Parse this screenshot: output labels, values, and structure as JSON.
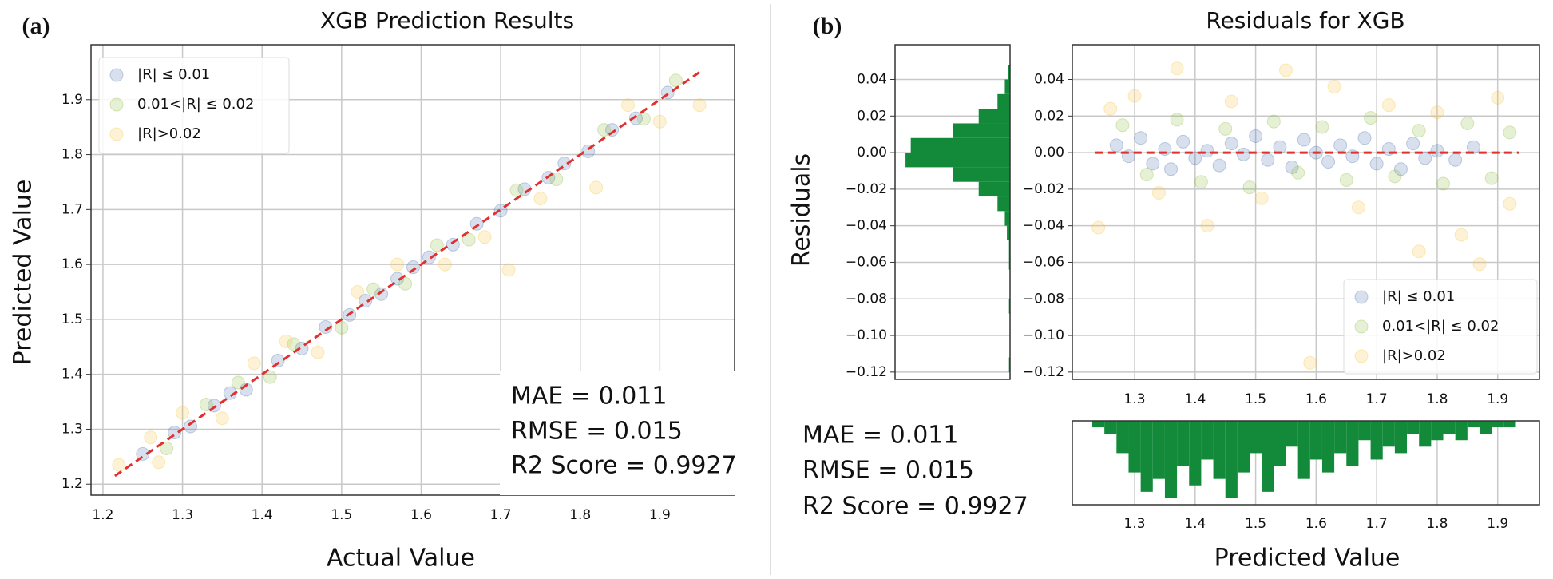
{
  "chart_data": [
    {
      "type": "scatter",
      "panel_label": "(a)",
      "title": "XGB Prediction Results",
      "x_label": "Actual Value",
      "y_label": "Predicted Value",
      "xlim": [
        1.185,
        1.994
      ],
      "ylim": [
        1.18,
        2.0
      ],
      "xticks": [
        1.2,
        1.3,
        1.4,
        1.5,
        1.6,
        1.7,
        1.8,
        1.9
      ],
      "yticks": [
        1.2,
        1.3,
        1.4,
        1.5,
        1.6,
        1.7,
        1.8,
        1.9
      ],
      "grid": true,
      "legend": "upper left",
      "alpha": 0.22,
      "series": [
        {
          "name": "|R| ≤ 0.01",
          "color": "#4c72b0",
          "x": [
            1.25,
            1.29,
            1.31,
            1.34,
            1.36,
            1.38,
            1.42,
            1.45,
            1.48,
            1.51,
            1.53,
            1.55,
            1.57,
            1.59,
            1.61,
            1.64,
            1.67,
            1.7,
            1.73,
            1.76,
            1.78,
            1.81,
            1.84,
            1.87,
            1.91
          ],
          "values": [
            1.255,
            1.294,
            1.305,
            1.343,
            1.366,
            1.372,
            1.425,
            1.447,
            1.486,
            1.508,
            1.534,
            1.546,
            1.574,
            1.595,
            1.613,
            1.636,
            1.674,
            1.698,
            1.737,
            1.758,
            1.784,
            1.806,
            1.845,
            1.866,
            1.913
          ]
        },
        {
          "name": "0.01<|R| ≤ 0.02",
          "color": "#8fbc3f",
          "x": [
            1.28,
            1.33,
            1.37,
            1.41,
            1.44,
            1.5,
            1.54,
            1.58,
            1.62,
            1.66,
            1.72,
            1.77,
            1.83,
            1.88,
            1.92
          ],
          "values": [
            1.265,
            1.345,
            1.385,
            1.395,
            1.455,
            1.485,
            1.555,
            1.565,
            1.635,
            1.645,
            1.735,
            1.755,
            1.845,
            1.865,
            1.935
          ]
        },
        {
          "name": "|R|>0.02",
          "color": "#f5c542",
          "x": [
            1.22,
            1.26,
            1.27,
            1.3,
            1.35,
            1.39,
            1.43,
            1.47,
            1.52,
            1.57,
            1.63,
            1.68,
            1.71,
            1.75,
            1.82,
            1.86,
            1.9,
            1.95
          ],
          "values": [
            1.235,
            1.285,
            1.24,
            1.33,
            1.32,
            1.42,
            1.46,
            1.44,
            1.55,
            1.6,
            1.6,
            1.65,
            1.59,
            1.72,
            1.74,
            1.89,
            1.86,
            1.89
          ]
        }
      ],
      "reference_line": {
        "color": "#e0312f",
        "x": [
          1.215,
          1.95
        ],
        "y": [
          1.215,
          1.95
        ]
      },
      "annotations": [
        "MAE = 0.011",
        "RMSE = 0.015",
        "R2 Score = 0.9927"
      ]
    },
    {
      "type": "scatter",
      "panel_label": "(b)",
      "title": "Residuals for XGB",
      "x_label": "Predicted Value",
      "y_label": "Residuals",
      "xlim": [
        1.197,
        1.969
      ],
      "ylim": [
        -0.124,
        0.059
      ],
      "xticks": [
        1.3,
        1.4,
        1.5,
        1.6,
        1.7,
        1.8,
        1.9
      ],
      "yticks": [
        {
          "value": -0.12,
          "label": "−0.12"
        },
        {
          "value": -0.1,
          "label": "−0.10"
        },
        {
          "value": -0.08,
          "label": "−0.08"
        },
        {
          "value": -0.06,
          "label": "−0.06"
        },
        {
          "value": -0.04,
          "label": "−0.04"
        },
        {
          "value": -0.02,
          "label": "−0.02"
        },
        {
          "value": 0,
          "label": "0.00"
        },
        0.02,
        0.04
      ],
      "grid": true,
      "legend": "lower right",
      "alpha": 0.22,
      "series": [
        {
          "name": "|R| ≤ 0.01",
          "color": "#4c72b0",
          "x": [
            1.27,
            1.29,
            1.31,
            1.33,
            1.35,
            1.36,
            1.38,
            1.4,
            1.42,
            1.44,
            1.46,
            1.48,
            1.5,
            1.52,
            1.54,
            1.56,
            1.58,
            1.6,
            1.62,
            1.64,
            1.66,
            1.68,
            1.7,
            1.72,
            1.74,
            1.76,
            1.78,
            1.8,
            1.83,
            1.86
          ],
          "values": [
            0.004,
            -0.002,
            0.008,
            -0.006,
            0.002,
            -0.009,
            0.006,
            -0.003,
            0.001,
            -0.007,
            0.005,
            -0.001,
            0.009,
            -0.004,
            0.003,
            -0.008,
            0.007,
            0,
            -0.005,
            0.004,
            -0.002,
            0.008,
            -0.006,
            0.002,
            -0.009,
            0.005,
            -0.003,
            0.001,
            -0.004,
            0.003
          ]
        },
        {
          "name": "0.01<|R| ≤ 0.02",
          "color": "#8fbc3f",
          "x": [
            1.28,
            1.32,
            1.37,
            1.41,
            1.45,
            1.49,
            1.53,
            1.57,
            1.61,
            1.65,
            1.69,
            1.73,
            1.77,
            1.81,
            1.85,
            1.89,
            1.92
          ],
          "values": [
            0.015,
            -0.012,
            0.018,
            -0.016,
            0.013,
            -0.019,
            0.017,
            -0.011,
            0.014,
            -0.015,
            0.019,
            -0.013,
            0.012,
            -0.017,
            0.016,
            -0.014,
            0.011
          ]
        },
        {
          "name": "|R|>0.02",
          "color": "#f5c542",
          "x": [
            1.24,
            1.26,
            1.3,
            1.34,
            1.37,
            1.42,
            1.46,
            1.51,
            1.55,
            1.59,
            1.63,
            1.67,
            1.72,
            1.77,
            1.8,
            1.84,
            1.87,
            1.9,
            1.92
          ],
          "values": [
            -0.041,
            0.024,
            0.031,
            -0.022,
            0.046,
            -0.04,
            0.028,
            -0.025,
            0.045,
            -0.115,
            0.036,
            -0.03,
            0.026,
            -0.054,
            0.022,
            -0.045,
            -0.061,
            0.03,
            -0.028
          ]
        }
      ],
      "reference_line": {
        "color": "#e0312f",
        "x": [
          1.235,
          1.935
        ],
        "y": [
          0,
          0
        ]
      },
      "annotations": [
        "MAE = 0.011",
        "RMSE = 0.015",
        "R2 Score = 0.9927"
      ]
    },
    {
      "type": "histogram",
      "orientation": "horizontal",
      "inverted": true,
      "color": "#138a3a",
      "grid": true,
      "xlim": [
        0,
        110
      ],
      "ylim": [
        -0.124,
        0.059
      ],
      "yticks": [
        {
          "value": -0.12,
          "label": "−0.12"
        },
        {
          "value": -0.1,
          "label": "−0.10"
        },
        {
          "value": -0.08,
          "label": "−0.08"
        },
        {
          "value": -0.06,
          "label": "−0.06"
        },
        {
          "value": -0.04,
          "label": "−0.04"
        },
        {
          "value": -0.02,
          "label": "−0.02"
        },
        {
          "value": 0,
          "label": "0.00"
        },
        0.02,
        0.04
      ],
      "bins": [
        -0.12,
        -0.112,
        -0.104,
        -0.096,
        -0.088,
        -0.08,
        -0.072,
        -0.064,
        -0.056,
        -0.048,
        -0.04,
        -0.032,
        -0.024,
        -0.016,
        -0.008,
        0,
        0.008,
        0.016,
        0.024,
        0.032,
        0.04,
        0.048
      ],
      "values": [
        1,
        0,
        0,
        0,
        1,
        0,
        0,
        1,
        1,
        3,
        5,
        12,
        30,
        55,
        100,
        95,
        55,
        30,
        12,
        5,
        2
      ]
    },
    {
      "type": "histogram",
      "orientation": "vertical",
      "inverted": true,
      "color": "#138a3a",
      "grid": true,
      "xlim": [
        1.197,
        1.969
      ],
      "ylim": [
        0,
        13
      ],
      "xticks": [
        1.3,
        1.4,
        1.5,
        1.6,
        1.7,
        1.8,
        1.9
      ],
      "bins": [
        1.23,
        1.25,
        1.27,
        1.29,
        1.31,
        1.33,
        1.35,
        1.37,
        1.39,
        1.41,
        1.43,
        1.45,
        1.47,
        1.49,
        1.51,
        1.53,
        1.55,
        1.57,
        1.59,
        1.61,
        1.63,
        1.65,
        1.67,
        1.69,
        1.71,
        1.73,
        1.75,
        1.77,
        1.79,
        1.81,
        1.83,
        1.85,
        1.87,
        1.89,
        1.91,
        1.93
      ],
      "values": [
        1,
        2,
        5,
        8,
        11,
        9,
        12,
        7,
        10,
        6,
        9,
        12,
        8,
        5,
        11,
        7,
        4,
        9,
        6,
        8,
        5,
        7,
        3,
        6,
        4,
        5,
        2,
        4,
        3,
        2,
        3,
        1,
        2,
        1,
        1
      ]
    }
  ]
}
